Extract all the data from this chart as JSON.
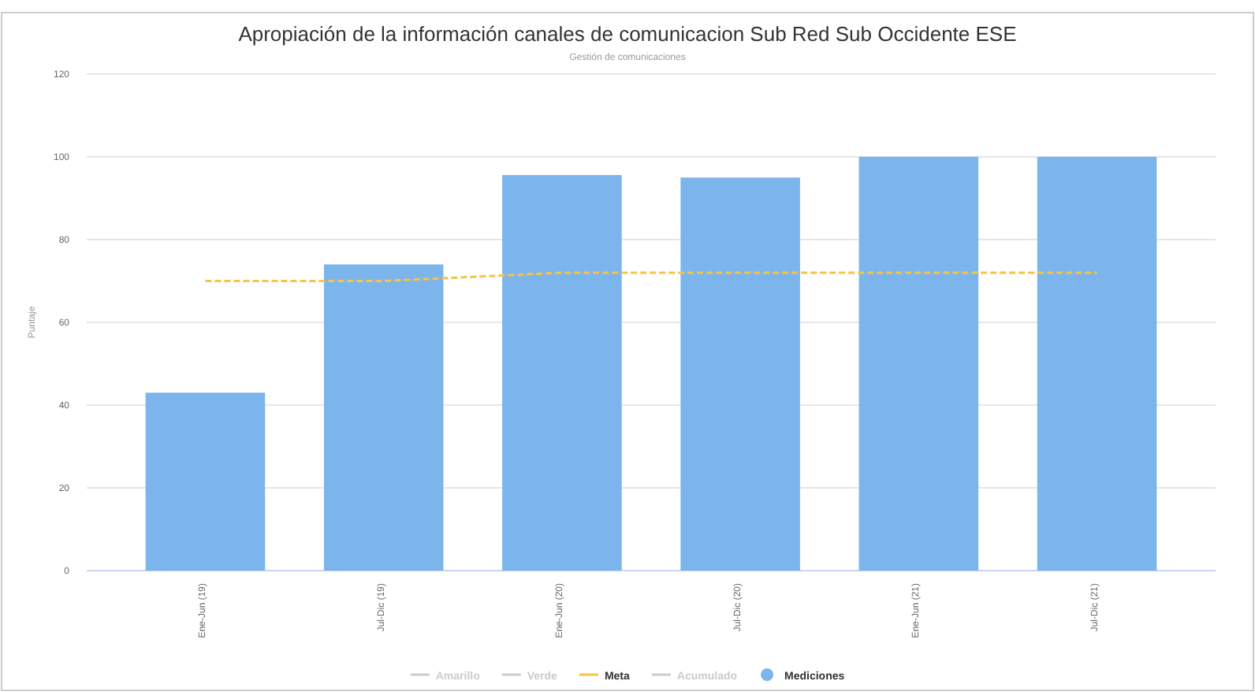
{
  "chart_data": {
    "type": "bar",
    "title": "Apropiación de la información canales de comunicacion Sub Red Sub Occidente ESE",
    "subtitle": "Gestión de comunicaciones",
    "ylabel": "Puntaje",
    "categories": [
      "Ene-Jun (19)",
      "Jul-Dic (19)",
      "Ene-Jun (20)",
      "Jul-Dic (20)",
      "Ene-Jun (21)",
      "Jul-Dic (21)"
    ],
    "series": [
      {
        "name": "Amarillo",
        "type": "line",
        "color": "#cccccc",
        "values": [
          null,
          null,
          null,
          null,
          null,
          null
        ]
      },
      {
        "name": "Verde",
        "type": "line",
        "color": "#cccccc",
        "values": [
          null,
          null,
          null,
          null,
          null,
          null
        ]
      },
      {
        "name": "Meta",
        "type": "line",
        "color": "#f7c443",
        "line_style": "dashed",
        "values": [
          70,
          70,
          72,
          72,
          72,
          72
        ]
      },
      {
        "name": "Acumulado",
        "type": "line",
        "color": "#cccccc",
        "values": [
          null,
          null,
          null,
          null,
          null,
          null
        ]
      },
      {
        "name": "Mediciones",
        "color": "#7cb5ec",
        "values": [
          43,
          74,
          95.6,
          95,
          100,
          100
        ]
      }
    ],
    "ylim": [
      0,
      120
    ],
    "yticks": [
      0,
      20,
      40,
      60,
      80,
      100,
      120
    ],
    "grid": "y",
    "legend": "bottom"
  }
}
